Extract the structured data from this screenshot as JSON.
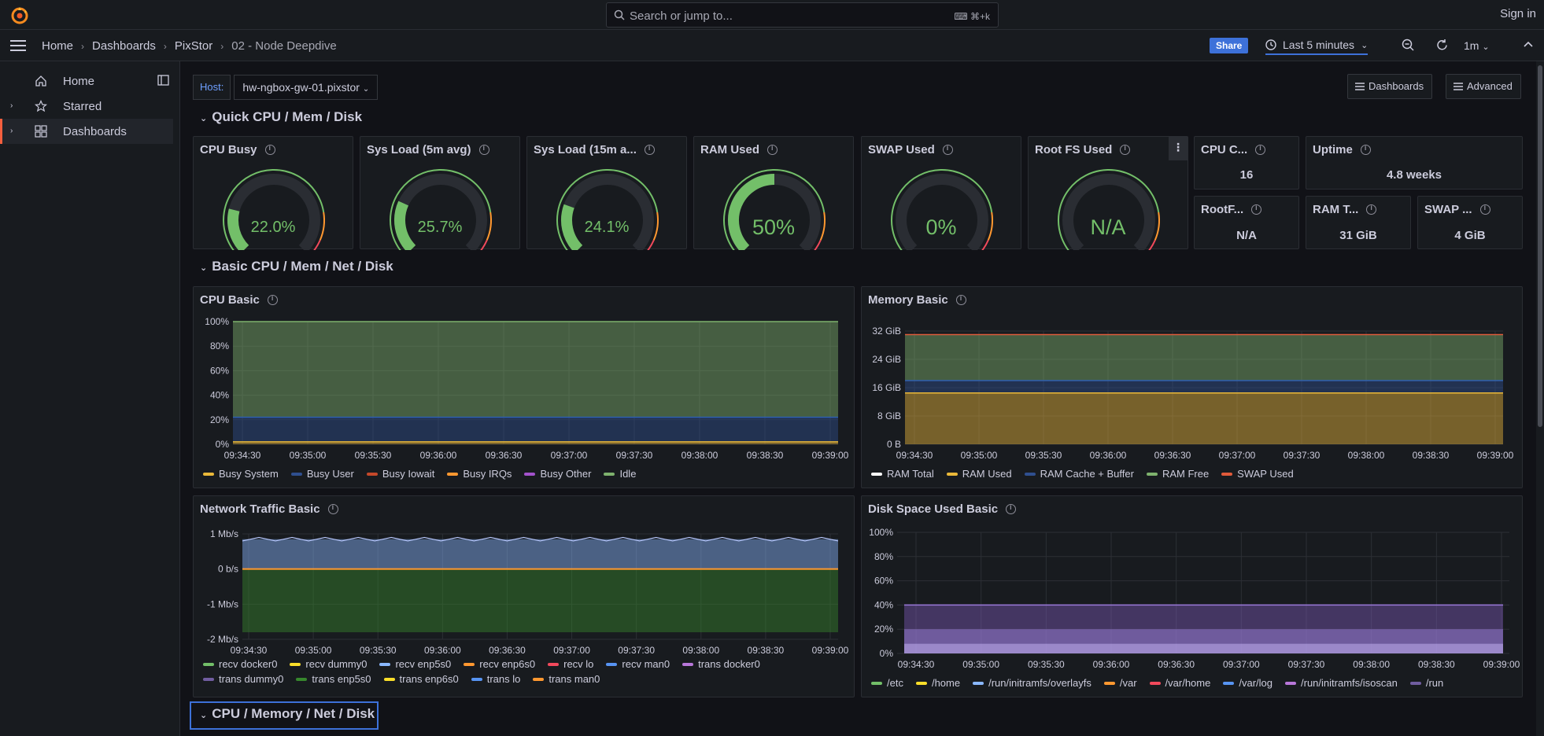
{
  "topbar": {
    "search_placeholder": "Search or jump to...",
    "search_shortcut": "⌘+k",
    "sign_in": "Sign in",
    "logo": "grafana-logo"
  },
  "nav": {
    "breadcrumbs": [
      "Home",
      "Dashboards",
      "PixStor",
      "02 - Node Deepdive"
    ],
    "share": "Share",
    "time_range": "Last 5 minutes",
    "refresh_interval": "1m"
  },
  "sidebar": {
    "items": [
      {
        "label": "Home",
        "icon": "home-icon"
      },
      {
        "label": "Starred",
        "icon": "star-icon"
      },
      {
        "label": "Dashboards",
        "icon": "apps-icon"
      }
    ]
  },
  "variables": {
    "host_label": "Host:",
    "host_value": "hw-ngbox-gw-01.pixstor"
  },
  "buttons": {
    "dashboards": "Dashboards",
    "advanced": "Advanced"
  },
  "rows": [
    "Quick CPU / Mem / Disk",
    "Basic CPU / Mem / Net / Disk",
    "CPU / Memory / Net / Disk"
  ],
  "gauges": [
    {
      "title": "CPU Busy",
      "value": "22.0%",
      "fraction": 0.22,
      "color": "#73bf69"
    },
    {
      "title": "Sys Load (5m avg)",
      "value": "25.7%",
      "fraction": 0.257,
      "color": "#73bf69"
    },
    {
      "title": "Sys Load (15m a...",
      "value": "24.1%",
      "fraction": 0.241,
      "color": "#73bf69"
    },
    {
      "title": "RAM Used",
      "value": "50%",
      "fraction": 0.5,
      "color": "#73bf69"
    },
    {
      "title": "SWAP Used",
      "value": "0%",
      "fraction": 0,
      "color": "#73bf69"
    },
    {
      "title": "Root FS Used",
      "value": "N/A",
      "fraction": 0,
      "color": "#73bf69"
    }
  ],
  "stats": [
    {
      "title": "CPU C...",
      "value": "16"
    },
    {
      "title": "Uptime",
      "value": "4.8 weeks"
    },
    {
      "title": "RootF...",
      "value": "N/A"
    },
    {
      "title": "RAM T...",
      "value": "31 GiB"
    },
    {
      "title": "SWAP ...",
      "value": "4 GiB"
    }
  ],
  "panels": {
    "cpu": "CPU Basic",
    "memory": "Memory Basic",
    "network": "Network Traffic Basic",
    "disk": "Disk Space Used Basic"
  },
  "chart_data": [
    {
      "type": "area",
      "title": "CPU Basic",
      "x": [
        "09:34:30",
        "09:35:00",
        "09:35:30",
        "09:36:00",
        "09:36:30",
        "09:37:00",
        "09:37:30",
        "09:38:00",
        "09:38:30",
        "09:39:00"
      ],
      "yticks": [
        "100%",
        "80%",
        "60%",
        "40%",
        "20%",
        "0%"
      ],
      "ylim": [
        0,
        100
      ],
      "series": [
        {
          "name": "Busy System",
          "color": "#eab839",
          "value": 2
        },
        {
          "name": "Busy User",
          "color": "#2f4f8f",
          "value": 20
        },
        {
          "name": "Busy Iowait",
          "color": "#c4482a",
          "value": 0
        },
        {
          "name": "Busy IRQs",
          "color": "#ff9830",
          "value": 0
        },
        {
          "name": "Busy Other",
          "color": "#a352cc",
          "value": 0
        },
        {
          "name": "Idle",
          "color": "#7eb26d",
          "value": 78
        }
      ]
    },
    {
      "type": "area",
      "title": "Memory Basic",
      "x": [
        "09:34:30",
        "09:35:00",
        "09:35:30",
        "09:36:00",
        "09:36:30",
        "09:37:00",
        "09:37:30",
        "09:38:00",
        "09:38:30",
        "09:39:00"
      ],
      "yticks": [
        "32 GiB",
        "24 GiB",
        "16 GiB",
        "8 GiB",
        "0 B"
      ],
      "ylim": [
        0,
        32
      ],
      "series": [
        {
          "name": "RAM Total",
          "color": "#ffffff",
          "value": 31
        },
        {
          "name": "RAM Used",
          "color": "#eab839",
          "value": 14.5
        },
        {
          "name": "RAM Cache + Buffer",
          "color": "#2f4f8f",
          "value": 3.5
        },
        {
          "name": "RAM Free",
          "color": "#7eb26d",
          "value": 13
        },
        {
          "name": "SWAP Used",
          "color": "#e05a3a",
          "value": 0
        }
      ]
    },
    {
      "type": "area",
      "title": "Network Traffic Basic",
      "x": [
        "09:34:30",
        "09:35:00",
        "09:35:30",
        "09:36:00",
        "09:36:30",
        "09:37:00",
        "09:37:30",
        "09:38:00",
        "09:38:30",
        "09:39:00"
      ],
      "yticks": [
        "1 Mb/s",
        "0 b/s",
        "-1 Mb/s",
        "-2 Mb/s"
      ],
      "ylim": [
        -2,
        1
      ],
      "series": [
        {
          "name": "recv docker0",
          "color": "#73bf69"
        },
        {
          "name": "recv dummy0",
          "color": "#fade2a"
        },
        {
          "name": "recv enp5s0",
          "color": "#8ab8ff",
          "value": 0.9
        },
        {
          "name": "recv enp6s0",
          "color": "#ff9830"
        },
        {
          "name": "recv lo",
          "color": "#f2495c"
        },
        {
          "name": "recv man0",
          "color": "#5794f2"
        },
        {
          "name": "trans docker0",
          "color": "#b877d9"
        },
        {
          "name": "trans dummy0",
          "color": "#705da0"
        },
        {
          "name": "trans enp5s0",
          "color": "#37872d",
          "value": -1.8
        },
        {
          "name": "trans enp6s0",
          "color": "#fade2a"
        },
        {
          "name": "trans lo",
          "color": "#5794f2"
        },
        {
          "name": "trans man0",
          "color": "#ff9830"
        }
      ]
    },
    {
      "type": "area",
      "title": "Disk Space Used Basic",
      "x": [
        "09:34:30",
        "09:35:00",
        "09:35:30",
        "09:36:00",
        "09:36:30",
        "09:37:00",
        "09:37:30",
        "09:38:00",
        "09:38:30",
        "09:39:00"
      ],
      "yticks": [
        "100%",
        "80%",
        "60%",
        "40%",
        "20%",
        "0%"
      ],
      "ylim": [
        0,
        100
      ],
      "series": [
        {
          "name": "/etc",
          "color": "#73bf69"
        },
        {
          "name": "/home",
          "color": "#fade2a"
        },
        {
          "name": "/run/initramfs/overlayfs",
          "color": "#8ab8ff"
        },
        {
          "name": "/var",
          "color": "#ff9830"
        },
        {
          "name": "/var/home",
          "color": "#f2495c"
        },
        {
          "name": "/var/log",
          "color": "#5794f2"
        },
        {
          "name": "/run/initramfs/isoscan",
          "color": "#b877d9"
        },
        {
          "name": "/run",
          "color": "#705da0",
          "value": 40
        }
      ]
    }
  ]
}
